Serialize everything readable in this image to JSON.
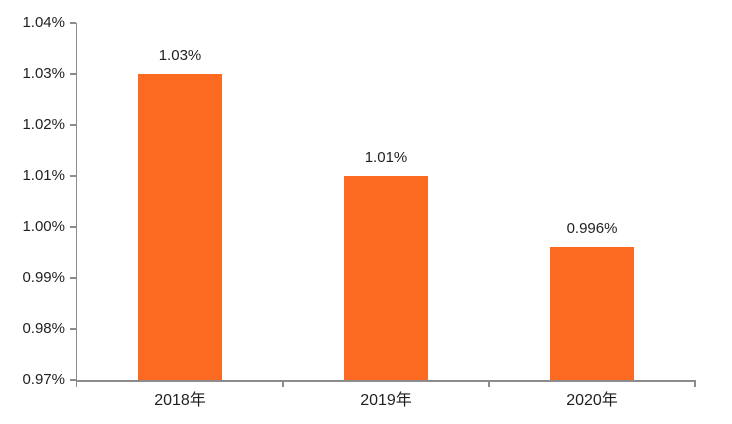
{
  "chart_data": {
    "type": "bar",
    "title": "",
    "xlabel": "",
    "ylabel": "",
    "categories": [
      "2018年",
      "2019年",
      "2020年"
    ],
    "values": [
      1.03,
      1.01,
      0.996
    ],
    "data_labels": [
      "1.03%",
      "1.01%",
      "0.996%"
    ],
    "ylim": [
      0.97,
      1.04
    ],
    "ytick_step": 0.01,
    "ytick_labels": [
      "0.97%",
      "0.98%",
      "0.99%",
      "1.00%",
      "1.01%",
      "1.02%",
      "1.03%",
      "1.04%"
    ],
    "grid": "off",
    "legend": "none",
    "colors": {
      "bar": "#fb6a20",
      "axis": "#8c8c8c",
      "text": "#1f1f1f",
      "background": "#ffffff"
    }
  }
}
